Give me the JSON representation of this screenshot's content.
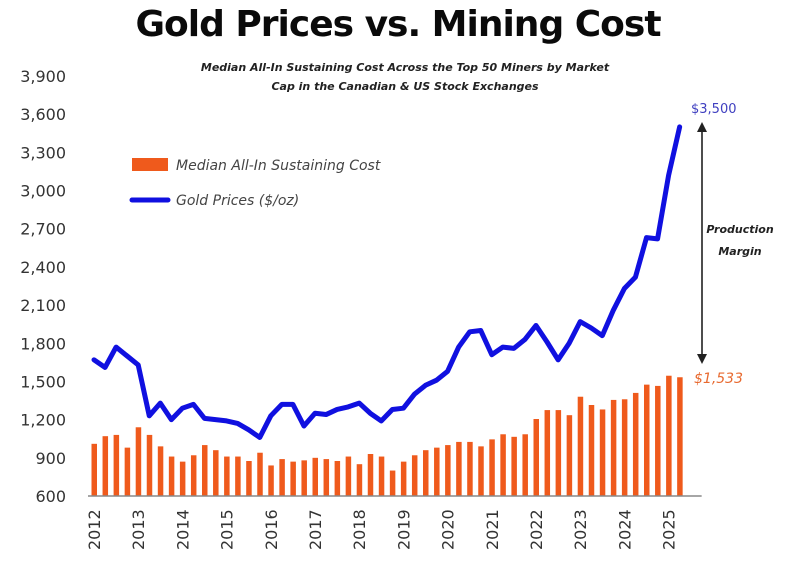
{
  "chart_data": {
    "type": "bar+line",
    "title": "Gold Prices vs. Mining Cost",
    "subtitle_lines": [
      "Median All-In Sustaining Cost Across the Top 50 Miners by Market",
      "Cap in the Canadian & US Stock Exchanges"
    ],
    "xlabel": "",
    "ylabel": "",
    "ylim": [
      600,
      3900
    ],
    "yticks": [
      "600",
      "900",
      "1,200",
      "1,500",
      "1,800",
      "2,100",
      "2,400",
      "2,700",
      "3,000",
      "3,300",
      "3,600",
      "3,900"
    ],
    "ytick_values": [
      600,
      900,
      1200,
      1500,
      1800,
      2100,
      2400,
      2700,
      3000,
      3300,
      3600,
      3900
    ],
    "xticks": [
      "2012",
      "2013",
      "2014",
      "2015",
      "2016",
      "2017",
      "2018",
      "2019",
      "2020",
      "2021",
      "2022",
      "2023",
      "2024",
      "2025"
    ],
    "x_frequency": "quarterly",
    "x_start": "2012 Q1",
    "x_end": "2025 Q2",
    "grid": false,
    "legend_position": "upper-left",
    "series": [
      {
        "name": "Median All-In Sustaining Cost",
        "type": "bar",
        "color": "#ef5a1c",
        "values": [
          1010,
          1070,
          1080,
          980,
          1140,
          1080,
          990,
          910,
          870,
          920,
          1000,
          960,
          910,
          910,
          875,
          940,
          840,
          890,
          870,
          880,
          900,
          890,
          875,
          910,
          850,
          930,
          910,
          800,
          870,
          920,
          960,
          980,
          1000,
          1025,
          1025,
          990,
          1045,
          1085,
          1065,
          1085,
          1205,
          1275,
          1275,
          1235,
          1380,
          1315,
          1280,
          1355,
          1360,
          1410,
          1475,
          1465,
          1545,
          1533
        ]
      },
      {
        "name": "Gold Prices ($/oz)",
        "type": "line",
        "color": "#1010e0",
        "values": [
          1670,
          1610,
          1770,
          1700,
          1630,
          1230,
          1330,
          1200,
          1290,
          1320,
          1210,
          1200,
          1190,
          1170,
          1120,
          1060,
          1230,
          1320,
          1320,
          1150,
          1250,
          1240,
          1280,
          1300,
          1330,
          1250,
          1190,
          1280,
          1290,
          1400,
          1470,
          1510,
          1580,
          1770,
          1890,
          1900,
          1710,
          1770,
          1760,
          1830,
          1940,
          1810,
          1670,
          1800,
          1970,
          1920,
          1860,
          2060,
          2230,
          2320,
          2630,
          2620,
          3120,
          3500
        ]
      }
    ],
    "annotations": {
      "gold_end_label": "$3,500",
      "cost_end_label": "$1,533",
      "margin_label_lines": [
        "Production",
        "Margin"
      ]
    }
  }
}
